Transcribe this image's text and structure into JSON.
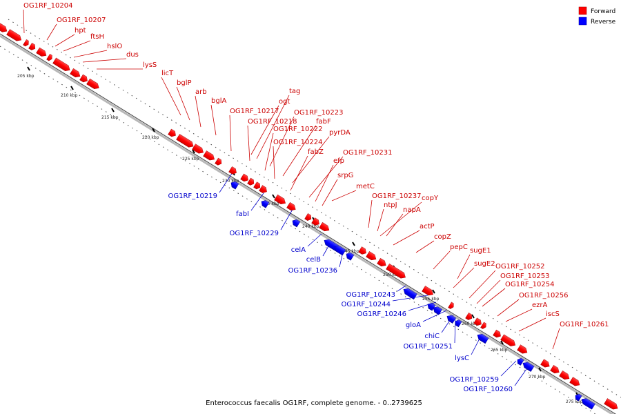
{
  "caption": "Enterococcus faecalis OG1RF, complete genome. - 0..2739625",
  "legend": [
    {
      "name": "Forward",
      "color": "#ff0000"
    },
    {
      "name": "Reverse",
      "color": "#0000ff"
    }
  ],
  "colors": {
    "forward": "#ff0000",
    "reverse": "#0000ff",
    "backbone": "#808080"
  },
  "ticks": [
    "205 kbp",
    "210 kbp",
    "215 kbp",
    "220 kbp",
    "225 kbp",
    "230 kbp",
    "235 kbp",
    "240 kbp",
    "245 kbp",
    "250 kbp",
    "255 kbp",
    "260 kbp",
    "265 kbp",
    "270 kbp",
    "275 kbp"
  ],
  "forward_genes": [
    "OG1RF_10204",
    "OG1RF_10207",
    "hpt",
    "ftsH",
    "hslO",
    "dus",
    "lysS",
    "licT",
    "bglP",
    "arb",
    "bglA",
    "OG1RF_10217",
    "ogt",
    "tag",
    "OG1RF_10218",
    "OG1RF_10223",
    "OG1RF_10222",
    "fabF",
    "OG1RF_10224",
    "pyrDA",
    "fabZ",
    "OG1RF_10231",
    "efp",
    "srpG",
    "metC",
    "OG1RF_10237",
    "copY",
    "ntpJ",
    "napA",
    "actP",
    "copZ",
    "pepC",
    "sugE1",
    "sugE2",
    "OG1RF_10252",
    "OG1RF_10253",
    "OG1RF_10254",
    "OG1RF_10256",
    "ezrA",
    "iscS",
    "OG1RF_10261"
  ],
  "reverse_genes": [
    "OG1RF_10219",
    "fabI",
    "OG1RF_10229",
    "celA",
    "celB",
    "OG1RF_10236",
    "OG1RF_10243",
    "OG1RF_10244",
    "OG1RF_10246",
    "gloA",
    "chiC",
    "OG1RF_10251",
    "lysC",
    "OG1RF_10259",
    "OG1RF_10260"
  ]
}
